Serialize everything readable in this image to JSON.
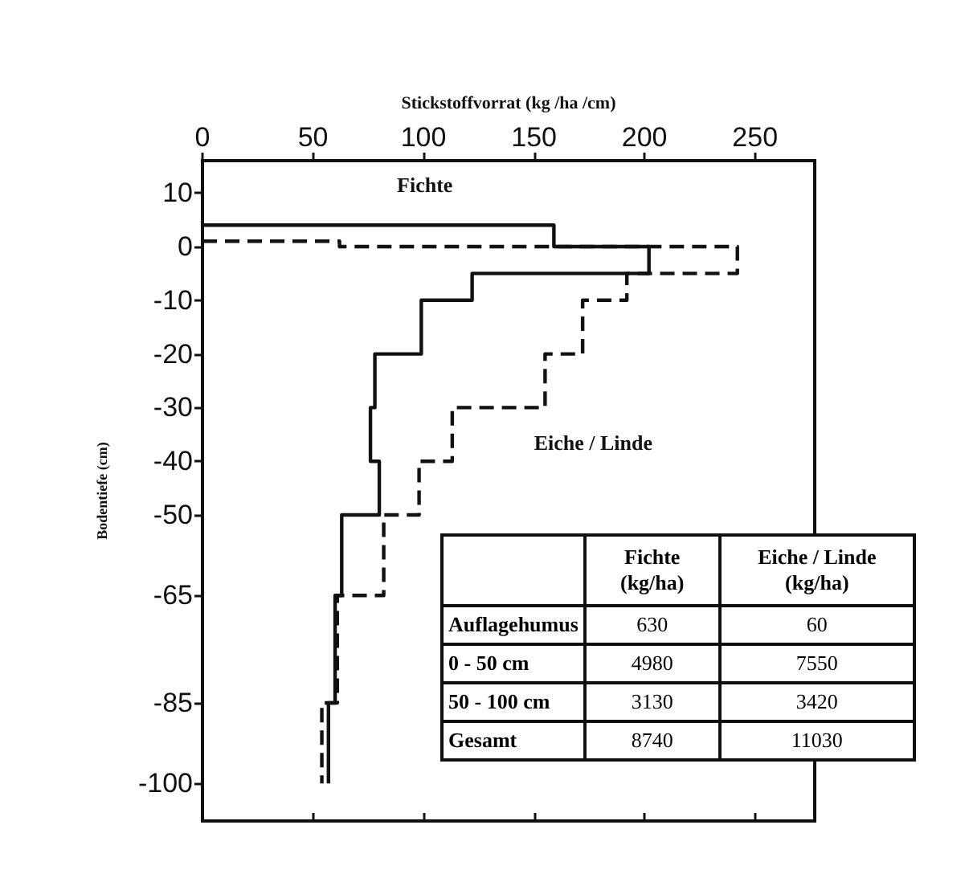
{
  "chart_data": {
    "type": "line",
    "xlabel": "Stickstoffvorrat (kg /ha /cm)",
    "ylabel": "Bodentiefe (cm)",
    "xlim": [
      0,
      277
    ],
    "xticks": [
      0,
      50,
      100,
      150,
      200,
      250
    ],
    "ylim": [
      -107,
      16
    ],
    "yticks": [
      10,
      0,
      -10,
      -20,
      -30,
      -40,
      -50,
      -65,
      -85,
      -100
    ],
    "grid": false,
    "legend": false,
    "marker": "none",
    "series": [
      {
        "name": "Fichte",
        "color": "#111111",
        "line_style": "solid",
        "x": [
          0,
          159,
          159,
          202,
          202,
          122,
          122,
          99,
          99,
          78,
          78,
          76,
          76,
          80,
          80,
          63,
          63,
          60,
          60,
          57,
          57
        ],
        "values": [
          4,
          4,
          0,
          0,
          -5,
          -5,
          -10,
          -10,
          -20,
          -20,
          -30,
          -30,
          -40,
          -40,
          -50,
          -50,
          -65,
          -65,
          -85,
          -85,
          -100
        ]
      },
      {
        "name": "Eiche / Linde",
        "color": "#111111",
        "line_style": "dashed",
        "x": [
          0,
          62,
          62,
          242,
          242,
          192,
          192,
          172,
          172,
          155,
          155,
          113,
          113,
          98,
          98,
          82,
          82,
          61,
          61,
          54,
          54
        ],
        "values": [
          1,
          1,
          0,
          0,
          -5,
          -5,
          -10,
          -10,
          -20,
          -20,
          -30,
          -30,
          -40,
          -40,
          -50,
          -50,
          -65,
          -65,
          -85,
          -85,
          -100
        ]
      }
    ],
    "annotations": [
      "Fichte (kg/ha)",
      "Eiche / Linde (kg/ha)",
      "Auflagehumus",
      "630",
      "60",
      "0 - 50 cm",
      "4980",
      "7550",
      "50 - 100 cm",
      "3130",
      "3420",
      "Gesamt",
      "8740",
      "11030"
    ]
  }
}
